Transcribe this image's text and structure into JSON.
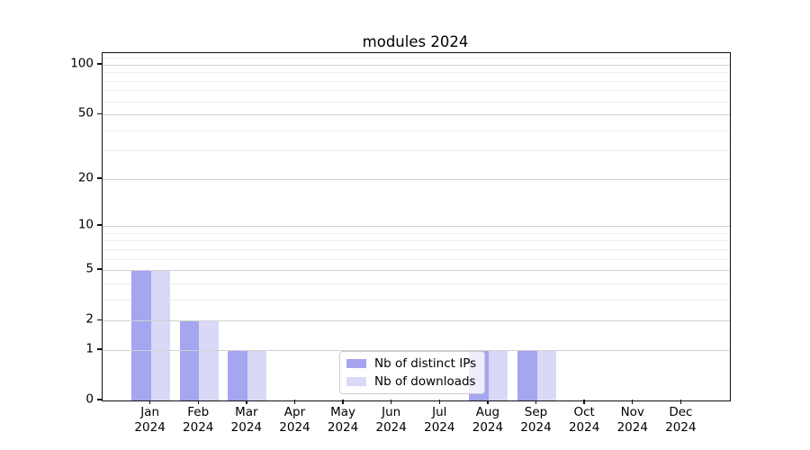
{
  "title": "modules 2024",
  "chart_data": {
    "type": "bar",
    "title": "modules 2024",
    "scale": "log1p",
    "categories": [
      "Jan",
      "Feb",
      "Mar",
      "Apr",
      "May",
      "Jun",
      "Jul",
      "Aug",
      "Sep",
      "Oct",
      "Nov",
      "Dec"
    ],
    "x_year_line": "2024",
    "series": [
      {
        "name": "Nb of distinct IPs",
        "color": "#a5a5f0",
        "values": [
          5,
          2,
          1,
          0,
          0,
          0,
          0,
          1,
          1,
          0,
          0,
          0
        ]
      },
      {
        "name": "Nb of downloads",
        "color": "#d9d9f7",
        "values": [
          5,
          2,
          1,
          0,
          0,
          0,
          0,
          1,
          1,
          0,
          0,
          0
        ]
      }
    ],
    "y_ticks": [
      0,
      1,
      2,
      5,
      10,
      20,
      50,
      100
    ],
    "y_minor_ticks": [
      3,
      4,
      6,
      7,
      8,
      9,
      30,
      40,
      60,
      70,
      80,
      90,
      110
    ],
    "ylim": [
      0,
      118
    ],
    "grid": true,
    "legend_position": "lower-center-inside",
    "colors": {
      "grid_major": "#d2d2d2",
      "grid_minor": "#ededed",
      "spine": "#111111",
      "legend_border": "#cccccc"
    }
  }
}
